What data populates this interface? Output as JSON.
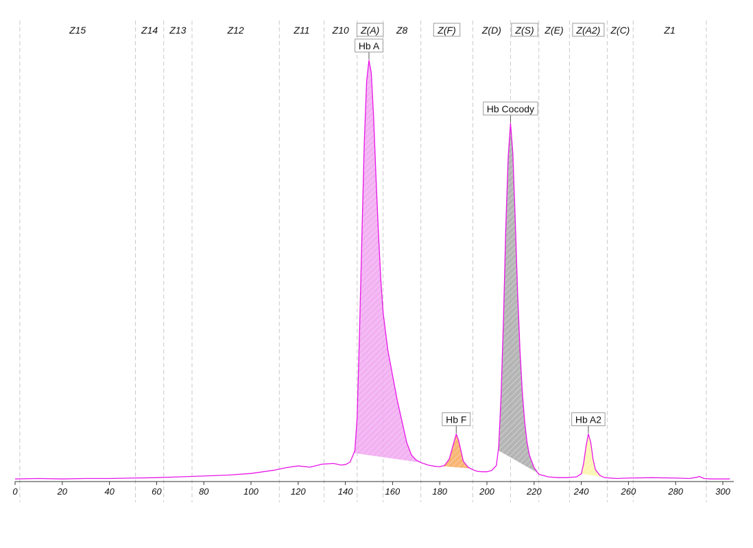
{
  "chart_data": {
    "type": "line",
    "title": "",
    "xlabel": "",
    "ylabel": "",
    "xlim": [
      0,
      303
    ],
    "ylim": [
      0,
      100
    ],
    "x_ticks": [
      0,
      20,
      40,
      60,
      80,
      100,
      120,
      140,
      160,
      180,
      200,
      220,
      240,
      260,
      280,
      300
    ],
    "grid": "vertical zone boundaries (dashed)",
    "zone_boundaries": [
      2,
      51,
      63,
      75,
      112,
      131,
      145,
      156,
      172,
      194,
      210,
      222,
      235,
      251,
      262,
      293
    ],
    "zones": [
      {
        "name": "Z15",
        "center": 26.5,
        "boxed": false
      },
      {
        "name": "Z14",
        "center": 57,
        "boxed": false
      },
      {
        "name": "Z13",
        "center": 69,
        "boxed": false
      },
      {
        "name": "Z12",
        "center": 93.5,
        "boxed": false
      },
      {
        "name": "Z11",
        "center": 121.5,
        "boxed": false
      },
      {
        "name": "Z10",
        "center": 138,
        "boxed": false
      },
      {
        "name": "Z(A)",
        "center": 150.5,
        "boxed": true
      },
      {
        "name": "Z8",
        "center": 164,
        "boxed": false
      },
      {
        "name": "Z(F)",
        "center": 183,
        "boxed": true
      },
      {
        "name": "Z(D)",
        "center": 202,
        "boxed": false
      },
      {
        "name": "Z(S)",
        "center": 216,
        "boxed": true
      },
      {
        "name": "Z(E)",
        "center": 228.5,
        "boxed": false
      },
      {
        "name": "Z(A2)",
        "center": 243,
        "boxed": true
      },
      {
        "name": "Z(C)",
        "center": 256.5,
        "boxed": false
      },
      {
        "name": "Z1",
        "center": 277.5,
        "boxed": false
      }
    ],
    "series": [
      {
        "color": "#e815e8",
        "points": [
          [
            0,
            0.3
          ],
          [
            10,
            0.4
          ],
          [
            20,
            0.3
          ],
          [
            30,
            0.4
          ],
          [
            40,
            0.4
          ],
          [
            50,
            0.5
          ],
          [
            60,
            0.6
          ],
          [
            70,
            0.8
          ],
          [
            80,
            1.0
          ],
          [
            90,
            1.2
          ],
          [
            100,
            1.6
          ],
          [
            110,
            2.4
          ],
          [
            115,
            3.0
          ],
          [
            120,
            3.4
          ],
          [
            125,
            3.1
          ],
          [
            130,
            3.8
          ],
          [
            135,
            4.0
          ],
          [
            138,
            3.6
          ],
          [
            140,
            3.7
          ],
          [
            142,
            4.3
          ],
          [
            144,
            7
          ],
          [
            145,
            15
          ],
          [
            146,
            35
          ],
          [
            147,
            58
          ],
          [
            148,
            80
          ],
          [
            149,
            95
          ],
          [
            150,
            100
          ],
          [
            151,
            97
          ],
          [
            152,
            86
          ],
          [
            153,
            72
          ],
          [
            154,
            59
          ],
          [
            155,
            48
          ],
          [
            156,
            40
          ],
          [
            158,
            31
          ],
          [
            160,
            25
          ],
          [
            162,
            19
          ],
          [
            164,
            14
          ],
          [
            166,
            9
          ],
          [
            168,
            6
          ],
          [
            170,
            4.8
          ],
          [
            172,
            4.2
          ],
          [
            175,
            3.6
          ],
          [
            178,
            3.3
          ],
          [
            180,
            3.2
          ],
          [
            182,
            3.5
          ],
          [
            184,
            5
          ],
          [
            186,
            9
          ],
          [
            187,
            11
          ],
          [
            188,
            9.5
          ],
          [
            189,
            7
          ],
          [
            190,
            4.5
          ],
          [
            192,
            3.1
          ],
          [
            194,
            2.5
          ],
          [
            196,
            2.1
          ],
          [
            198,
            2.0
          ],
          [
            200,
            2.0
          ],
          [
            202,
            2.3
          ],
          [
            204,
            3.5
          ],
          [
            205,
            8
          ],
          [
            206,
            20
          ],
          [
            207,
            38
          ],
          [
            208,
            60
          ],
          [
            209,
            77
          ],
          [
            210,
            85
          ],
          [
            211,
            78
          ],
          [
            212,
            62
          ],
          [
            213,
            45
          ],
          [
            214,
            31
          ],
          [
            215,
            21
          ],
          [
            216,
            14
          ],
          [
            217,
            9
          ],
          [
            218,
            6
          ],
          [
            220,
            3.0
          ],
          [
            222,
            1.4
          ],
          [
            226,
            0.8
          ],
          [
            230,
            0.6
          ],
          [
            234,
            0.6
          ],
          [
            238,
            0.8
          ],
          [
            240,
            1.5
          ],
          [
            241,
            4
          ],
          [
            242,
            8
          ],
          [
            243,
            11
          ],
          [
            244,
            9
          ],
          [
            245,
            5
          ],
          [
            246,
            2.5
          ],
          [
            248,
            1.1
          ],
          [
            250,
            0.6
          ],
          [
            255,
            0.4
          ],
          [
            260,
            0.5
          ],
          [
            270,
            0.6
          ],
          [
            280,
            0.5
          ],
          [
            286,
            0.4
          ],
          [
            289,
            0.7
          ],
          [
            290,
            0.9
          ],
          [
            292,
            0.4
          ],
          [
            295,
            0.3
          ],
          [
            303,
            0.3
          ]
        ]
      }
    ],
    "peaks": [
      {
        "label": "Hb A",
        "x": 150,
        "y": 100,
        "from": 143.6,
        "to": 172,
        "fill": "#f0a3f0"
      },
      {
        "label": "Hb F",
        "x": 187,
        "y": 11,
        "from": 181,
        "to": 193,
        "fill": "#f7a85a"
      },
      {
        "label": "Hb Cocody",
        "x": 210,
        "y": 85,
        "from": 204.8,
        "to": 221.6,
        "fill": "#a8a8a8"
      },
      {
        "label": "Hb A2",
        "x": 243,
        "y": 11,
        "from": 240,
        "to": 249.5,
        "fill": "#fbf4a8"
      }
    ]
  }
}
